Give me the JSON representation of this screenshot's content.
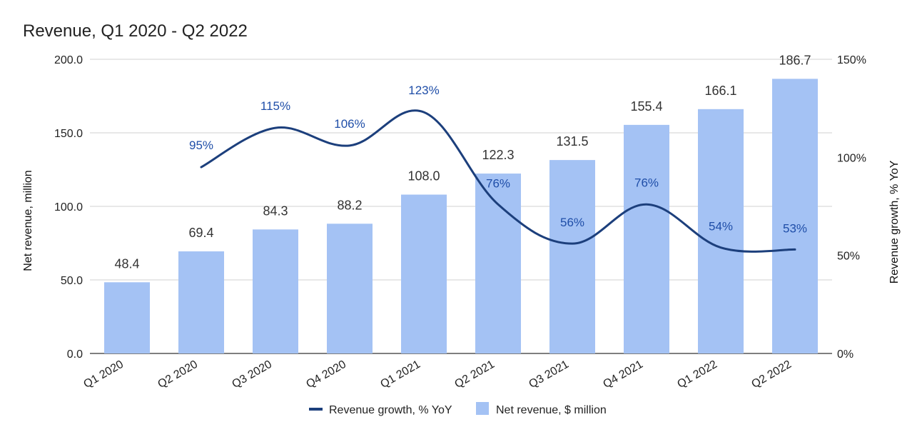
{
  "chart_data": {
    "type": "bar",
    "title": "Revenue, Q1 2020 - Q2 2022",
    "categories": [
      "Q1 2020",
      "Q2 2020",
      "Q3 2020",
      "Q4 2020",
      "Q1 2021",
      "Q2 2021",
      "Q3 2021",
      "Q4 2021",
      "Q1 2022",
      "Q2 2022"
    ],
    "series": [
      {
        "name": "Net revenue, $ million",
        "type": "bar",
        "axis": "left",
        "values": [
          48.4,
          69.4,
          84.3,
          88.2,
          108.0,
          122.3,
          131.5,
          155.4,
          166.1,
          186.7
        ],
        "labels": [
          "48.4",
          "69.4",
          "84.3",
          "88.2",
          "108.0",
          "122.3",
          "131.5",
          "155.4",
          "166.1",
          "186.7"
        ],
        "color": "#a4c2f4"
      },
      {
        "name": "Revenue growth, % YoY",
        "type": "line",
        "axis": "right",
        "values": [
          null,
          95,
          115,
          106,
          123,
          76,
          56,
          76,
          54,
          53
        ],
        "labels": [
          "",
          "95%",
          "115%",
          "106%",
          "123%",
          "76%",
          "56%",
          "76%",
          "54%",
          "53%"
        ],
        "color": "#1c3f7c"
      }
    ],
    "ylabel": "Net revenue,   million",
    "y2label": "Revenue growth, % YoY",
    "ylim": [
      0,
      200
    ],
    "y2lim": [
      0,
      150
    ],
    "yticks": [
      "0.0",
      "50.0",
      "100.0",
      "150.0",
      "200.0"
    ],
    "y2ticks": [
      "0%",
      "50%",
      "100%",
      "150%"
    ],
    "grid": true,
    "legend": "bottom"
  }
}
